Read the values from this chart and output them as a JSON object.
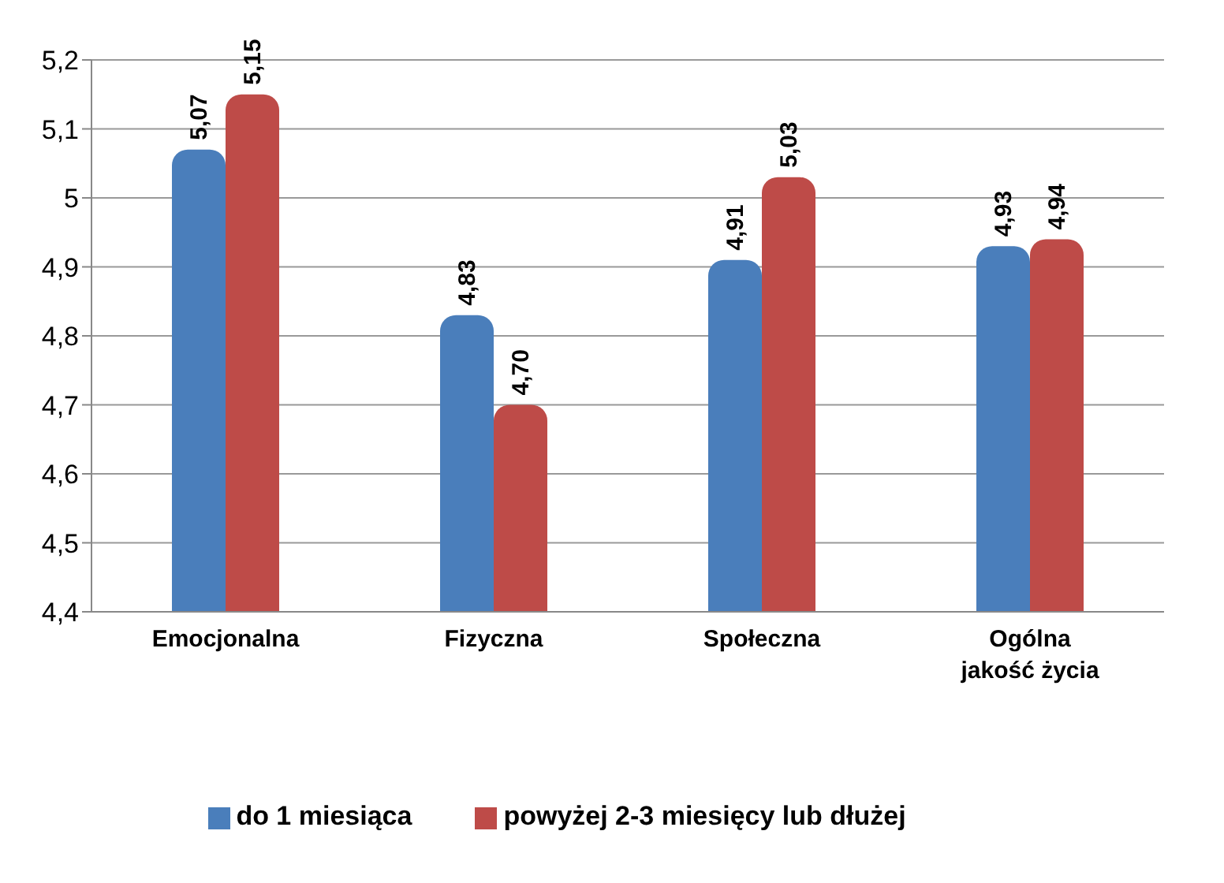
{
  "chart_data": {
    "type": "bar",
    "categories": [
      "Emocjonalna",
      "Fizyczna",
      "Społeczna",
      "Ogólna jakość życia"
    ],
    "series": [
      {
        "name": "do 1 miesiąca",
        "color": "#4a7ebb",
        "values": [
          5.07,
          4.83,
          4.91,
          4.93
        ],
        "value_labels": [
          "5,07",
          "4,83",
          "4,91",
          "4,93"
        ]
      },
      {
        "name": "powyżej 2-3 miesięcy lub dłużej",
        "color": "#be4b48",
        "values": [
          5.15,
          4.7,
          5.03,
          4.94
        ],
        "value_labels": [
          "5,15",
          "4,70",
          "5,03",
          "4,94"
        ]
      }
    ],
    "ylim": [
      4.4,
      5.2
    ],
    "yticks": [
      {
        "value": 4.4,
        "label": "4,4"
      },
      {
        "value": 4.5,
        "label": "4,5"
      },
      {
        "value": 4.6,
        "label": "4,6"
      },
      {
        "value": 4.7,
        "label": "4,7"
      },
      {
        "value": 4.8,
        "label": "4,8"
      },
      {
        "value": 4.9,
        "label": "4,9"
      },
      {
        "value": 5,
        "label": "5"
      },
      {
        "value": 5.1,
        "label": "5,1"
      },
      {
        "value": 5.2,
        "label": "5,2"
      }
    ],
    "grid": "y",
    "legend": "bottom"
  }
}
